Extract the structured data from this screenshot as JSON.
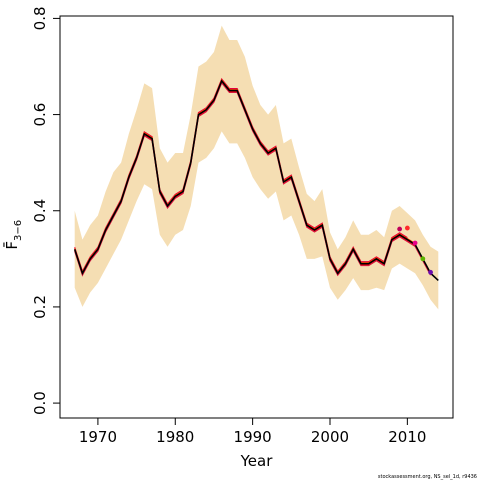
{
  "chart_data": {
    "type": "line",
    "xlabel": "Year",
    "ylabel": "F̄",
    "ylabel_sub": "3−6",
    "footnote": "stockassessment.org, NS_sel_1d, r9436",
    "xlim": [
      1967,
      2014
    ],
    "ylim": [
      0,
      0.8
    ],
    "x_ticks": [
      1970,
      1980,
      1990,
      2000,
      2010
    ],
    "x_tick_labels": [
      "1970",
      "1980",
      "1990",
      "2000",
      "2010"
    ],
    "y_ticks": [
      0.0,
      0.2,
      0.4,
      0.6,
      0.8
    ],
    "y_tick_labels": [
      "0.0",
      "0.2",
      "0.4",
      "0.6",
      "0.8"
    ],
    "grid": false,
    "colors": {
      "band": "#f5deb3",
      "main_line": "#000000",
      "retro_lines": [
        "#e8003d",
        "#ff4500",
        "#ff0000",
        "#dc143c"
      ]
    },
    "years": [
      1967,
      1968,
      1969,
      1970,
      1971,
      1972,
      1973,
      1974,
      1975,
      1976,
      1977,
      1978,
      1979,
      1980,
      1981,
      1982,
      1983,
      1984,
      1985,
      1986,
      1987,
      1988,
      1989,
      1990,
      1991,
      1992,
      1993,
      1994,
      1995,
      1996,
      1997,
      1998,
      1999,
      2000,
      2001,
      2002,
      2003,
      2004,
      2005,
      2006,
      2007,
      2008,
      2009,
      2010,
      2011,
      2012,
      2013,
      2014
    ],
    "estimate": [
      0.32,
      0.27,
      0.3,
      0.32,
      0.36,
      0.39,
      0.42,
      0.47,
      0.51,
      0.56,
      0.55,
      0.44,
      0.41,
      0.43,
      0.44,
      0.5,
      0.6,
      0.61,
      0.63,
      0.67,
      0.65,
      0.65,
      0.61,
      0.57,
      0.54,
      0.52,
      0.53,
      0.46,
      0.47,
      0.42,
      0.37,
      0.36,
      0.37,
      0.3,
      0.27,
      0.29,
      0.32,
      0.29,
      0.29,
      0.3,
      0.29,
      0.34,
      0.35,
      0.34,
      0.33,
      0.3,
      0.27,
      0.255
    ],
    "band_upper": [
      0.4,
      0.34,
      0.37,
      0.39,
      0.44,
      0.48,
      0.5,
      0.56,
      0.61,
      0.665,
      0.655,
      0.53,
      0.5,
      0.52,
      0.52,
      0.6,
      0.7,
      0.71,
      0.73,
      0.785,
      0.755,
      0.755,
      0.72,
      0.66,
      0.62,
      0.6,
      0.62,
      0.54,
      0.55,
      0.49,
      0.435,
      0.42,
      0.445,
      0.355,
      0.32,
      0.345,
      0.38,
      0.35,
      0.35,
      0.36,
      0.345,
      0.4,
      0.41,
      0.395,
      0.38,
      0.35,
      0.325,
      0.315
    ],
    "band_lower": [
      0.24,
      0.2,
      0.23,
      0.25,
      0.28,
      0.31,
      0.34,
      0.38,
      0.42,
      0.455,
      0.445,
      0.35,
      0.325,
      0.35,
      0.36,
      0.41,
      0.5,
      0.51,
      0.53,
      0.565,
      0.54,
      0.54,
      0.51,
      0.47,
      0.445,
      0.425,
      0.44,
      0.38,
      0.39,
      0.35,
      0.3,
      0.3,
      0.305,
      0.24,
      0.215,
      0.235,
      0.26,
      0.235,
      0.235,
      0.24,
      0.235,
      0.28,
      0.29,
      0.28,
      0.27,
      0.245,
      0.215,
      0.195
    ],
    "retro_endpoints": [
      {
        "year": 2009,
        "value": 0.362,
        "color": "#c0005a"
      },
      {
        "year": 2010,
        "value": 0.364,
        "color": "#ff2a2a"
      },
      {
        "year": 2011,
        "value": 0.333,
        "color": "#e8008a"
      },
      {
        "year": 2012,
        "value": 0.3,
        "color": "#5cb300"
      },
      {
        "year": 2013,
        "value": 0.272,
        "color": "#6a0dad"
      }
    ]
  }
}
